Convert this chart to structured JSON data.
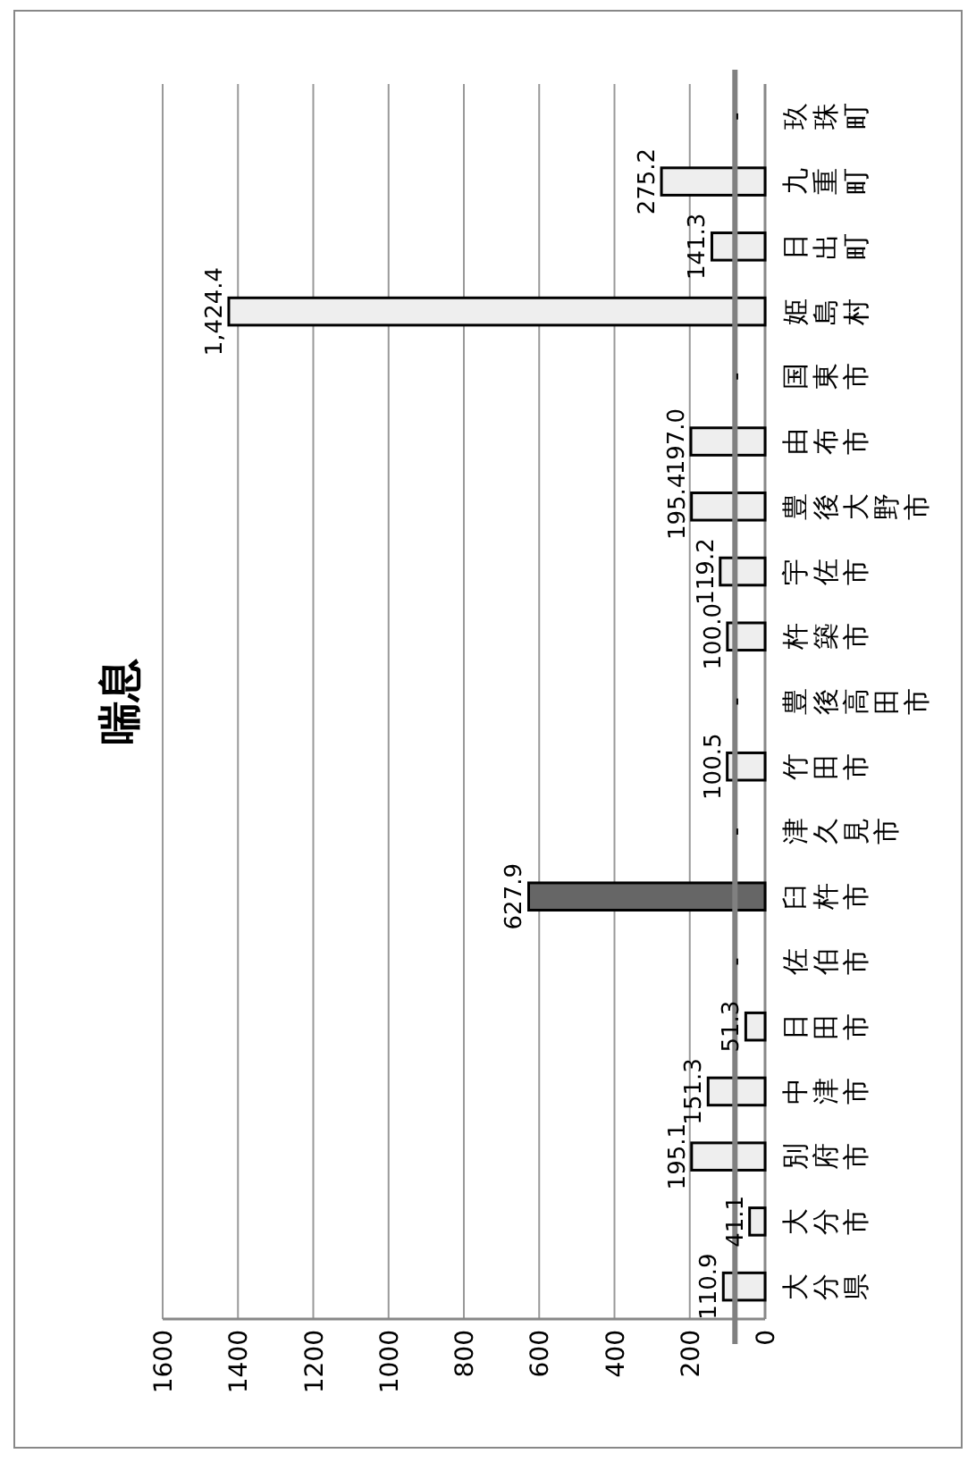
{
  "chart_data": {
    "type": "bar",
    "orientation": "horizontal",
    "title": "喘息",
    "categories": [
      "玖珠町",
      "九重町",
      "日出町",
      "姫島村",
      "国東市",
      "由布市",
      "豊後大野市",
      "宇佐市",
      "杵築市",
      "豊後高田市",
      "竹田市",
      "津久見市",
      "臼杵市",
      "佐伯市",
      "日田市",
      "中津市",
      "別府市",
      "大分市",
      "大分県"
    ],
    "values": [
      null,
      275.2,
      141.3,
      1424.4,
      null,
      197.0,
      195.4,
      119.2,
      100.0,
      null,
      100.5,
      null,
      627.9,
      null,
      51.3,
      151.3,
      195.1,
      41.1,
      110.9
    ],
    "value_labels": [
      "-",
      "275.2",
      "141.3",
      "1,424.4",
      "-",
      "197.0",
      "195.4",
      "119.2",
      "100.0",
      "-",
      "100.5",
      "-",
      "627.9",
      "-",
      "51.3",
      "151.3",
      "195.1",
      "41.1",
      "110.9"
    ],
    "colors": [
      null,
      "#eeeeee",
      "#eeeeee",
      "#eeeeee",
      null,
      "#eeeeee",
      "#eeeeee",
      "#eeeeee",
      "#eeeeee",
      null,
      "#eeeeee",
      null,
      "#666666",
      null,
      "#eeeeee",
      "#eeeeee",
      "#eeeeee",
      "#eeeeee",
      "#eeeeee"
    ],
    "xlim": [
      1600,
      0
    ],
    "xticks": [
      1600,
      1400,
      1200,
      1000,
      800,
      600,
      400,
      200,
      0
    ],
    "ref_lines": [
      {
        "axis": "x",
        "value": 80,
        "color": "#808080"
      }
    ],
    "grid": "x"
  }
}
